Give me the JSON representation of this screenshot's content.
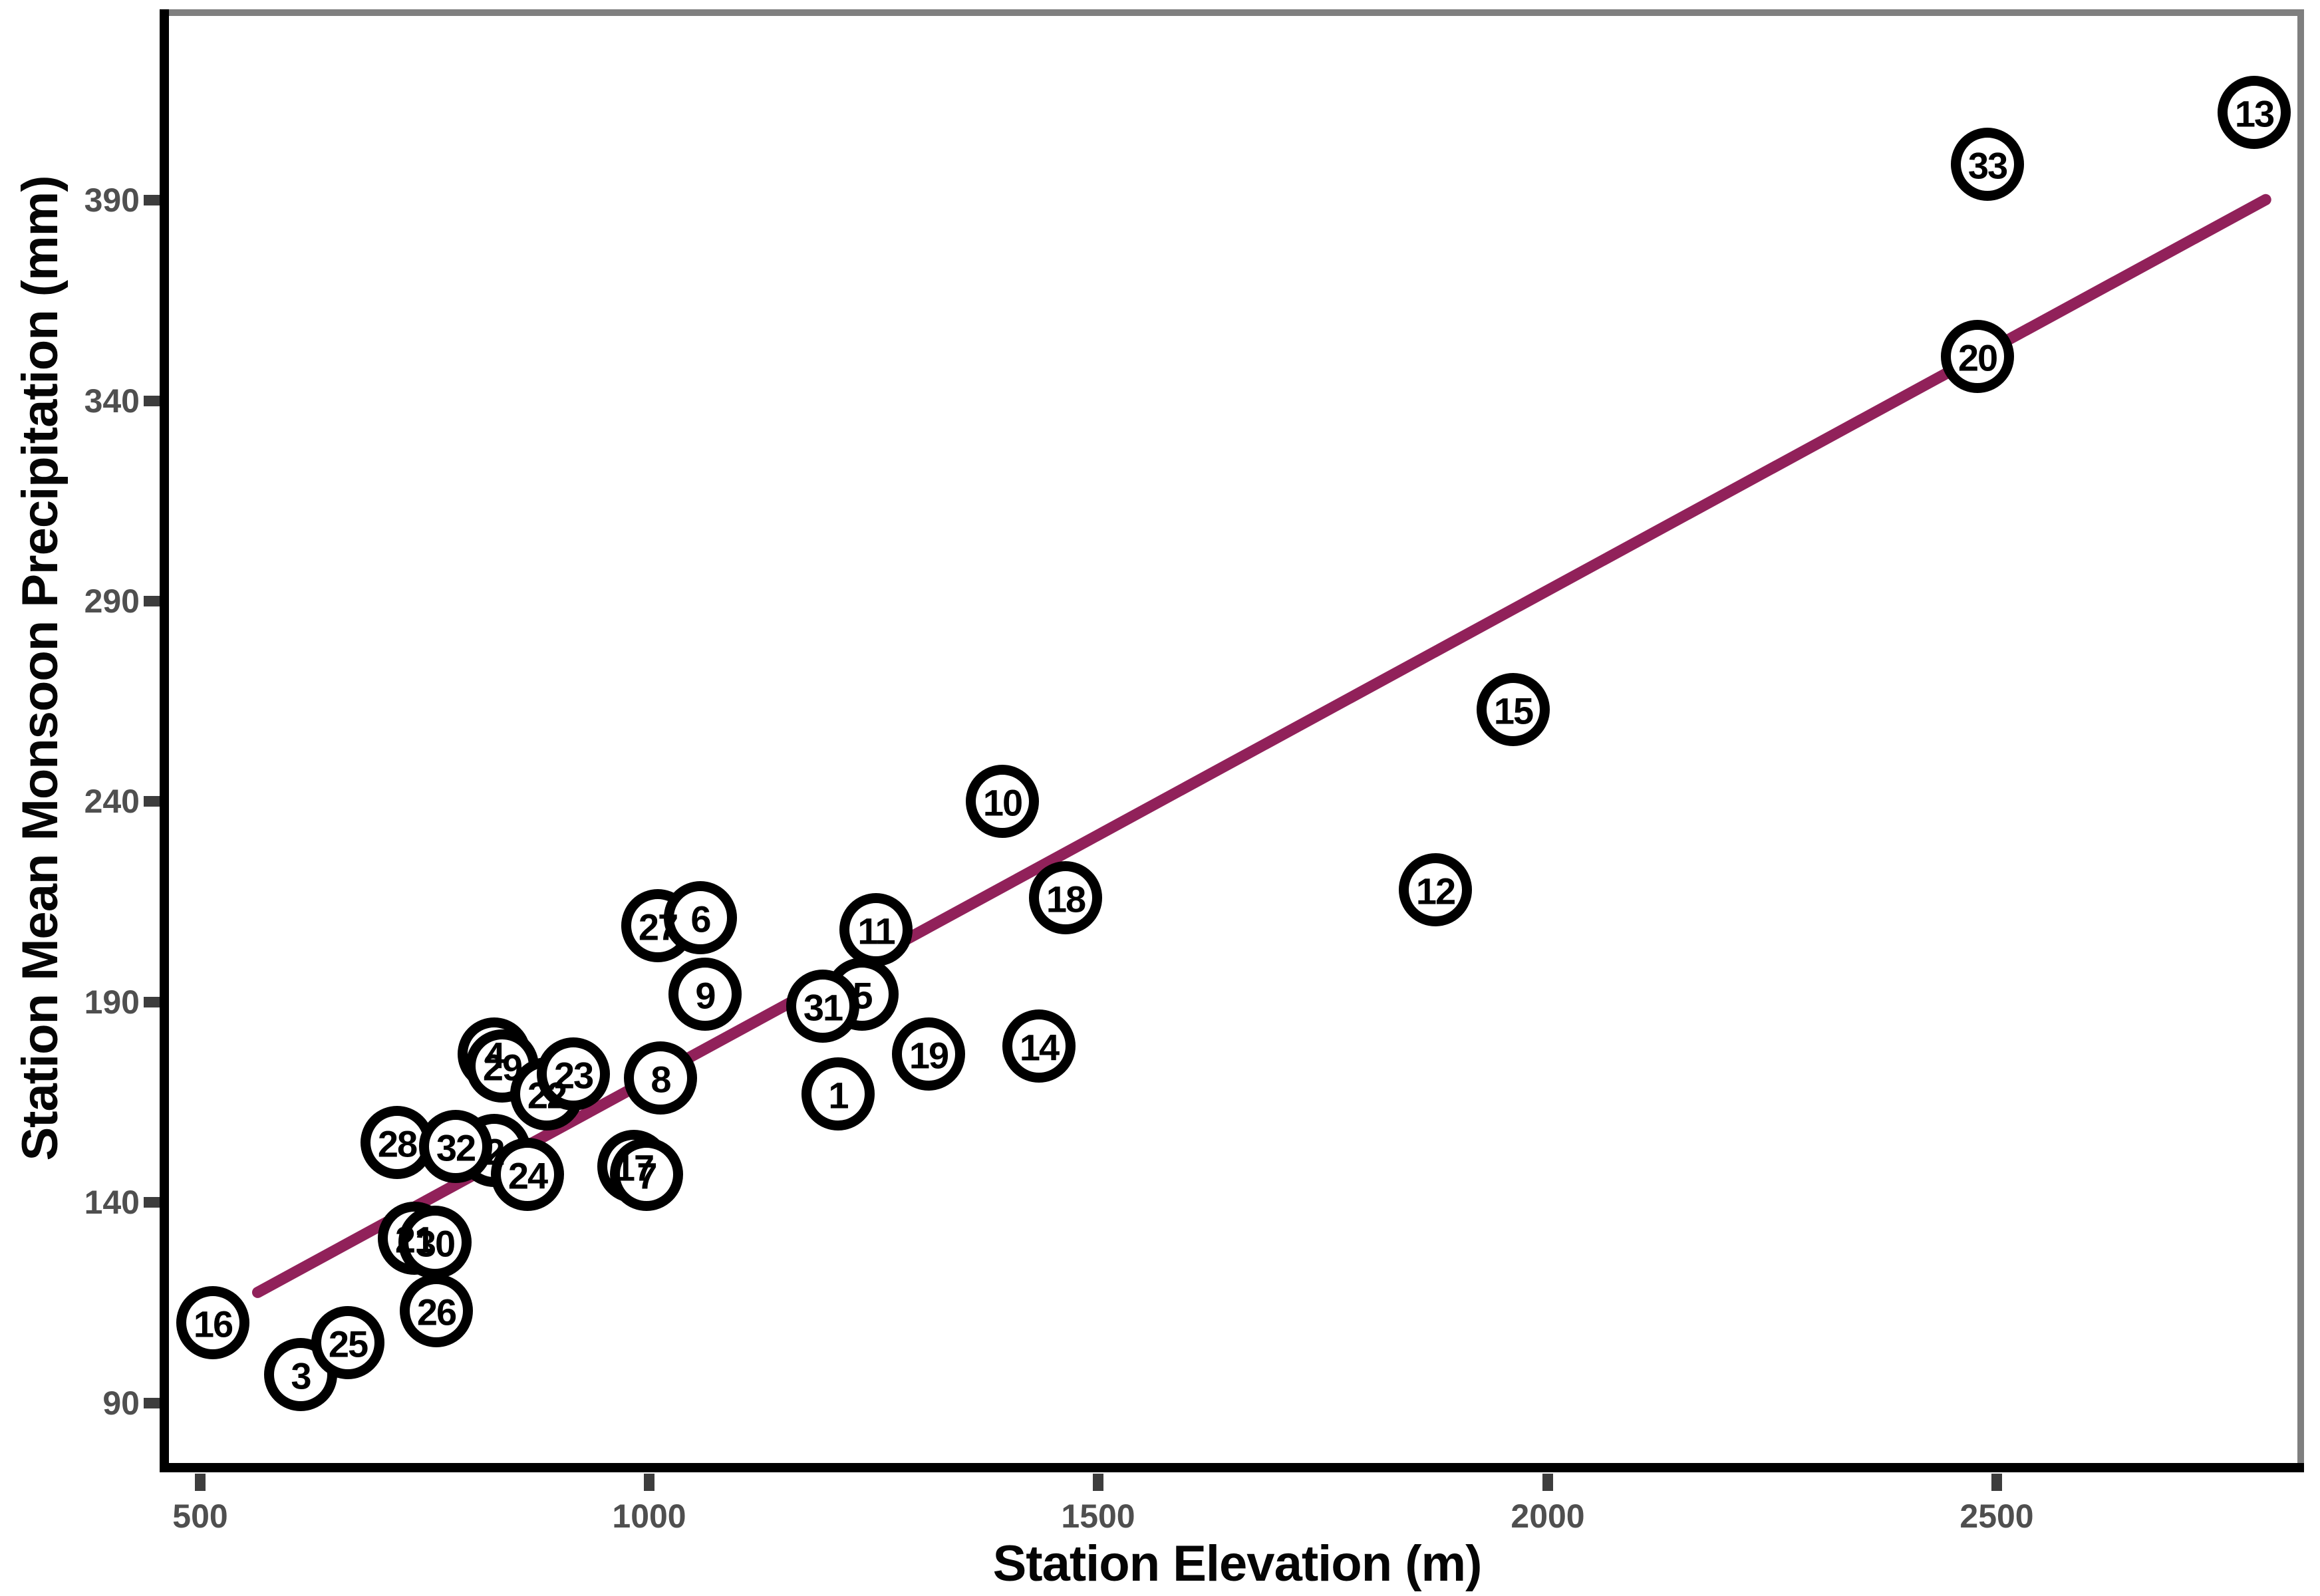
{
  "chart_data": {
    "type": "scatter",
    "title": "",
    "xlabel": "Station Elevation (m)",
    "ylabel": "Station Mean Monsoon Precipitation (mm)",
    "x_tick_labels": [
      "500",
      "1000",
      "1500",
      "2000",
      "2500"
    ],
    "x_tick_values": [
      500,
      1000,
      1500,
      2000,
      2500
    ],
    "y_tick_labels": [
      "90",
      "140",
      "190",
      "240",
      "290",
      "340",
      "390"
    ],
    "y_tick_values": [
      90,
      140,
      190,
      240,
      290,
      340,
      390
    ],
    "xlim": [
      465,
      2835
    ],
    "ylim": [
      75,
      436
    ],
    "grid": false,
    "legend": "none",
    "marker_style": "open-circle-numbered",
    "points": [
      {
        "station": "1",
        "elevation_m": 1210,
        "precip_mm": 167
      },
      {
        "station": "2",
        "elevation_m": 827,
        "precip_mm": 153
      },
      {
        "station": "3",
        "elevation_m": 612,
        "precip_mm": 97
      },
      {
        "station": "4",
        "elevation_m": 827,
        "precip_mm": 177
      },
      {
        "station": "5",
        "elevation_m": 1237,
        "precip_mm": 192
      },
      {
        "station": "6",
        "elevation_m": 1057,
        "precip_mm": 211
      },
      {
        "station": "7",
        "elevation_m": 997,
        "precip_mm": 147
      },
      {
        "station": "8",
        "elevation_m": 1012,
        "precip_mm": 171
      },
      {
        "station": "9",
        "elevation_m": 1062,
        "precip_mm": 192
      },
      {
        "station": "10",
        "elevation_m": 1393,
        "precip_mm": 240
      },
      {
        "station": "11",
        "elevation_m": 1252,
        "precip_mm": 208
      },
      {
        "station": "12",
        "elevation_m": 1875,
        "precip_mm": 218
      },
      {
        "station": "13",
        "elevation_m": 2787,
        "precip_mm": 412
      },
      {
        "station": "14",
        "elevation_m": 1434,
        "precip_mm": 179
      },
      {
        "station": "15",
        "elevation_m": 1962,
        "precip_mm": 263
      },
      {
        "station": "16",
        "elevation_m": 514,
        "precip_mm": 110
      },
      {
        "station": "17",
        "elevation_m": 983,
        "precip_mm": 149
      },
      {
        "station": "18",
        "elevation_m": 1463,
        "precip_mm": 216
      },
      {
        "station": "19",
        "elevation_m": 1311,
        "precip_mm": 177
      },
      {
        "station": "20",
        "elevation_m": 2479,
        "precip_mm": 351
      },
      {
        "station": "21",
        "elevation_m": 738,
        "precip_mm": 131
      },
      {
        "station": "22",
        "elevation_m": 886,
        "precip_mm": 167
      },
      {
        "station": "23",
        "elevation_m": 915,
        "precip_mm": 172
      },
      {
        "station": "24",
        "elevation_m": 864,
        "precip_mm": 147
      },
      {
        "station": "25",
        "elevation_m": 664,
        "precip_mm": 105
      },
      {
        "station": "26",
        "elevation_m": 763,
        "precip_mm": 113
      },
      {
        "station": "27",
        "elevation_m": 1009,
        "precip_mm": 209
      },
      {
        "station": "28",
        "elevation_m": 719,
        "precip_mm": 155
      },
      {
        "station": "29",
        "elevation_m": 836,
        "precip_mm": 174
      },
      {
        "station": "30",
        "elevation_m": 761,
        "precip_mm": 130
      },
      {
        "station": "31",
        "elevation_m": 1193,
        "precip_mm": 189
      },
      {
        "station": "32",
        "elevation_m": 784,
        "precip_mm": 154
      },
      {
        "station": "33",
        "elevation_m": 2490,
        "precip_mm": 399
      }
    ],
    "trend_line": {
      "x_start": 558,
      "y_start": 117,
      "x_end": 2805,
      "y_end": 391
    },
    "colors": {
      "marker_stroke": "#000000",
      "marker_fill": "#ffffff",
      "point_label": "#000000",
      "trend": "#91215A",
      "tick_text": "#4f4f4f",
      "tick_mark": "#3d3d3d",
      "axis_line": "#000000",
      "panel_border": "#7f7f7f",
      "background": "#ffffff"
    }
  }
}
